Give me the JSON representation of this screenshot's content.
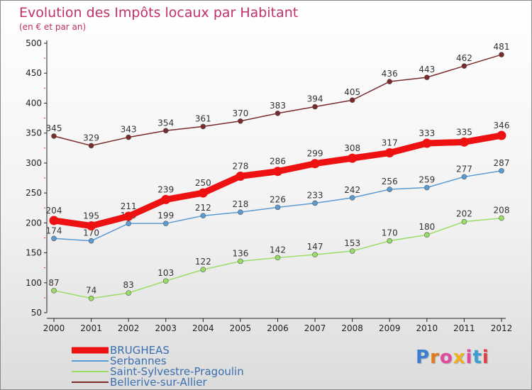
{
  "chart_data": {
    "type": "line",
    "title": "Evolution des Impôts locaux par Habitant",
    "subtitle": "(en € et par an)",
    "x": [
      "2000",
      "2001",
      "2002",
      "2003",
      "2004",
      "2005",
      "2006",
      "2007",
      "2008",
      "2009",
      "2010",
      "2011",
      "2012"
    ],
    "ylim": [
      50,
      500
    ],
    "yticks": [
      50,
      100,
      150,
      200,
      250,
      300,
      350,
      400,
      450,
      500
    ],
    "grid": false,
    "legend": "bottom-left",
    "series": [
      {
        "name": "BRUGHEAS",
        "color": "#ee1111",
        "emphasis": true,
        "values": [
          204,
          195,
          211,
          239,
          250,
          278,
          286,
          299,
          308,
          317,
          333,
          335,
          346
        ]
      },
      {
        "name": "Serbannes",
        "color": "#5a9bd4",
        "values": [
          174,
          170,
          199,
          199,
          212,
          218,
          226,
          233,
          242,
          256,
          259,
          277,
          287
        ]
      },
      {
        "name": "Saint-Sylvestre-Pragoulin",
        "color": "#99dd66",
        "values": [
          87,
          74,
          83,
          103,
          122,
          136,
          142,
          147,
          153,
          170,
          180,
          202,
          208
        ]
      },
      {
        "name": "Bellerive-sur-Allier",
        "color": "#7a2a2a",
        "values": [
          345,
          329,
          343,
          354,
          361,
          370,
          383,
          394,
          405,
          436,
          443,
          462,
          481
        ]
      }
    ]
  },
  "branding": {
    "logo_letters": [
      "P",
      "r",
      "o",
      "x",
      "i",
      "t",
      "i"
    ],
    "logo_colors": [
      "#3a7fd0",
      "#e07a1a",
      "#e04aa0",
      "#f0b020",
      "#e04aa0",
      "#3a9fd0",
      "#e04040"
    ]
  }
}
